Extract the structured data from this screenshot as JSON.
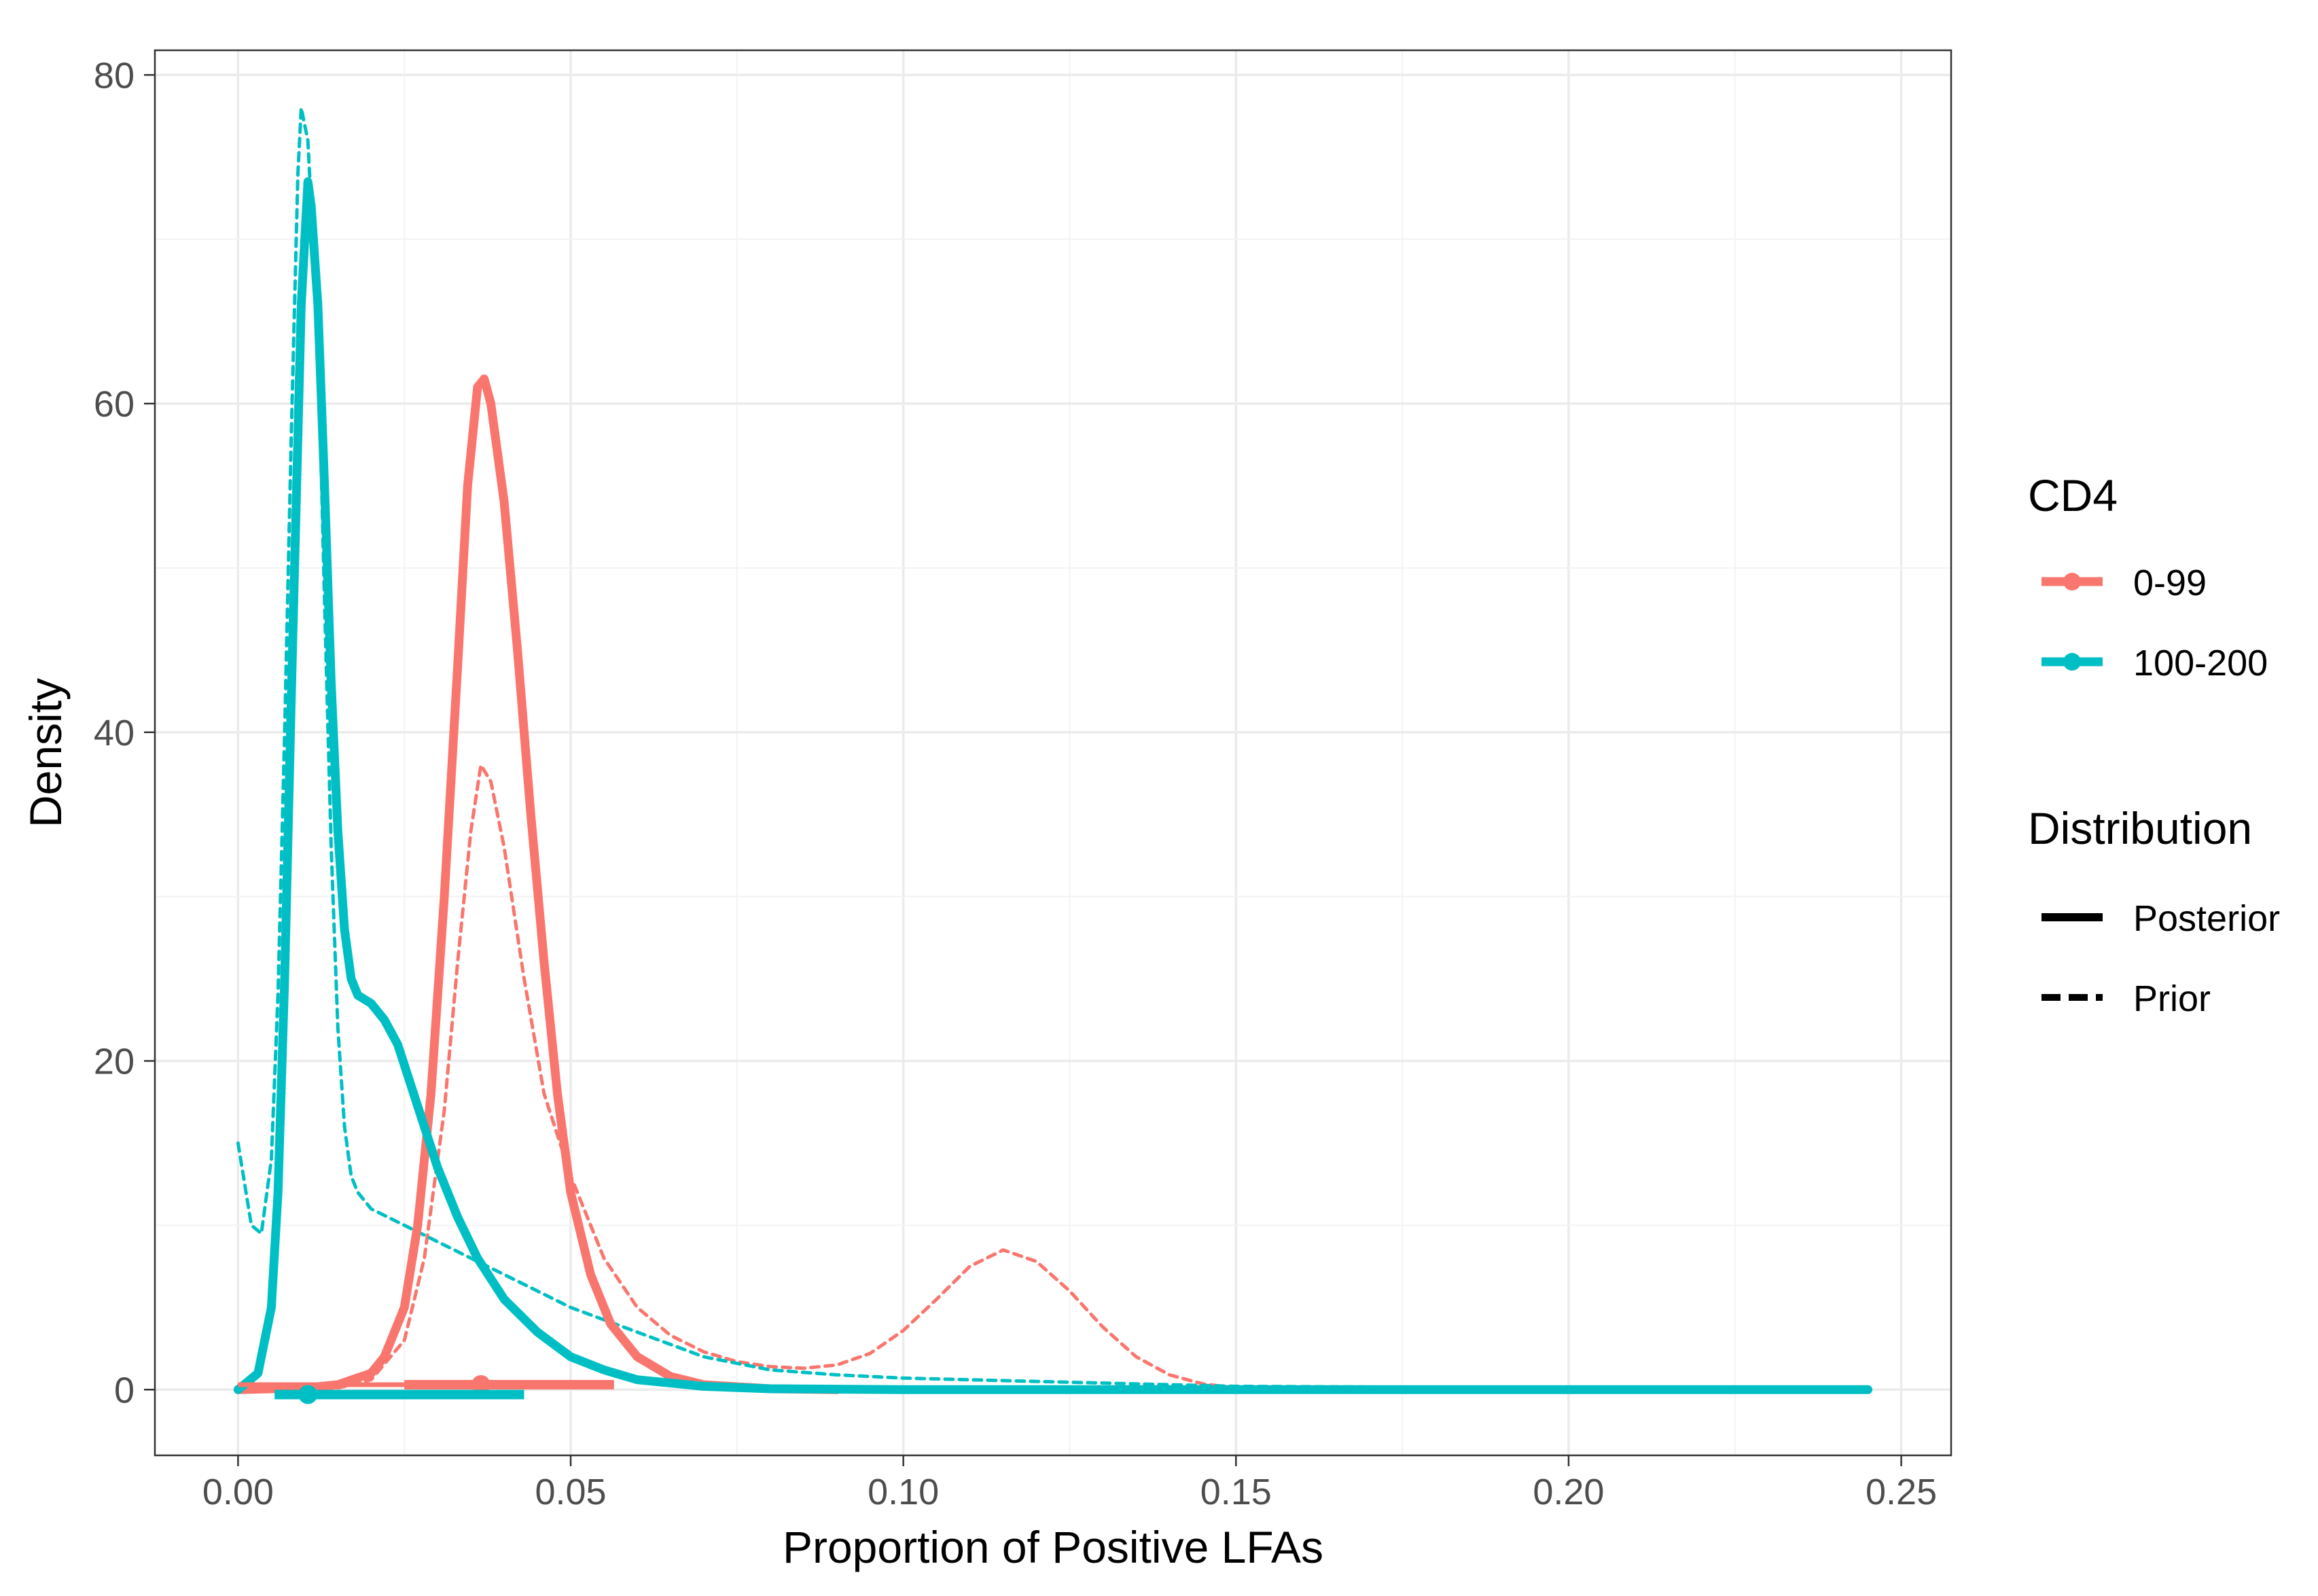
{
  "chart_data": {
    "type": "line",
    "title": "",
    "xlabel": "Proportion of Positive LFAs",
    "ylabel": "Density",
    "xlim": [
      -0.0125,
      0.2575
    ],
    "ylim": [
      -4,
      81.5
    ],
    "x_ticks": [
      0.0,
      0.05,
      0.1,
      0.15,
      0.2,
      0.25
    ],
    "x_tick_labels": [
      "0.00",
      "0.05",
      "0.10",
      "0.15",
      "0.20",
      "0.25"
    ],
    "y_ticks": [
      0,
      20,
      40,
      60,
      80
    ],
    "y_tick_labels": [
      "0",
      "20",
      "40",
      "60",
      "80"
    ],
    "grid": true,
    "colors": {
      "cd4_0_99": "#F8766D",
      "cd4_100_200": "#00BFC4"
    },
    "legend": {
      "placement": "right",
      "groups": [
        {
          "title": "CD4",
          "entries": [
            {
              "label": "0-99",
              "color": "#F8766D"
            },
            {
              "label": "100-200",
              "color": "#00BFC4"
            }
          ]
        },
        {
          "title": "Distribution",
          "entries": [
            {
              "label": "Posterior",
              "style": "solid"
            },
            {
              "label": "Prior",
              "style": "dashed"
            }
          ]
        }
      ]
    },
    "series": [
      {
        "group": "0-99",
        "distribution": "Prior",
        "color": "#F8766D",
        "style": "dashed",
        "points": [
          [
            0.0,
            0
          ],
          [
            0.015,
            0.1
          ],
          [
            0.02,
            0.6
          ],
          [
            0.025,
            3
          ],
          [
            0.028,
            8
          ],
          [
            0.031,
            17
          ],
          [
            0.033,
            26
          ],
          [
            0.035,
            34
          ],
          [
            0.0365,
            38
          ],
          [
            0.038,
            37
          ],
          [
            0.04,
            33
          ],
          [
            0.043,
            25
          ],
          [
            0.046,
            18
          ],
          [
            0.05,
            13
          ],
          [
            0.055,
            8
          ],
          [
            0.06,
            5
          ],
          [
            0.065,
            3.3
          ],
          [
            0.07,
            2.3
          ],
          [
            0.075,
            1.7
          ],
          [
            0.08,
            1.4
          ],
          [
            0.085,
            1.3
          ],
          [
            0.09,
            1.5
          ],
          [
            0.095,
            2.2
          ],
          [
            0.1,
            3.6
          ],
          [
            0.105,
            5.5
          ],
          [
            0.11,
            7.5
          ],
          [
            0.115,
            8.5
          ],
          [
            0.12,
            7.8
          ],
          [
            0.125,
            6
          ],
          [
            0.13,
            3.8
          ],
          [
            0.135,
            2
          ],
          [
            0.14,
            0.9
          ],
          [
            0.145,
            0.35
          ],
          [
            0.15,
            0.1
          ],
          [
            0.16,
            0
          ]
        ]
      },
      {
        "group": "100-200",
        "distribution": "Prior",
        "color": "#00BFC4",
        "style": "dashed",
        "points": [
          [
            0.0,
            15
          ],
          [
            0.002,
            10
          ],
          [
            0.0035,
            9.5
          ],
          [
            0.005,
            14
          ],
          [
            0.006,
            24
          ],
          [
            0.007,
            40
          ],
          [
            0.008,
            58
          ],
          [
            0.009,
            74
          ],
          [
            0.0095,
            78
          ],
          [
            0.0105,
            76
          ],
          [
            0.012,
            64
          ],
          [
            0.013,
            48
          ],
          [
            0.014,
            33
          ],
          [
            0.015,
            22
          ],
          [
            0.016,
            16
          ],
          [
            0.017,
            13
          ],
          [
            0.018,
            12
          ],
          [
            0.02,
            11
          ],
          [
            0.025,
            10
          ],
          [
            0.03,
            9
          ],
          [
            0.035,
            8
          ],
          [
            0.04,
            7
          ],
          [
            0.045,
            6
          ],
          [
            0.05,
            5
          ],
          [
            0.06,
            3.5
          ],
          [
            0.07,
            2
          ],
          [
            0.08,
            1.2
          ],
          [
            0.09,
            0.9
          ],
          [
            0.1,
            0.7
          ],
          [
            0.12,
            0.5
          ],
          [
            0.14,
            0.3
          ],
          [
            0.15,
            0.2
          ],
          [
            0.2,
            0.1
          ],
          [
            0.245,
            0
          ]
        ]
      },
      {
        "group": "0-99",
        "distribution": "Posterior",
        "color": "#F8766D",
        "style": "solid",
        "points": [
          [
            0.0,
            0
          ],
          [
            0.01,
            0.1
          ],
          [
            0.015,
            0.3
          ],
          [
            0.02,
            1
          ],
          [
            0.022,
            2
          ],
          [
            0.025,
            5
          ],
          [
            0.027,
            10
          ],
          [
            0.029,
            18
          ],
          [
            0.031,
            30
          ],
          [
            0.033,
            44
          ],
          [
            0.0345,
            55
          ],
          [
            0.036,
            61
          ],
          [
            0.037,
            61.5
          ],
          [
            0.038,
            60
          ],
          [
            0.04,
            54
          ],
          [
            0.042,
            45
          ],
          [
            0.044,
            35
          ],
          [
            0.046,
            26
          ],
          [
            0.048,
            18
          ],
          [
            0.05,
            12
          ],
          [
            0.053,
            7
          ],
          [
            0.056,
            4
          ],
          [
            0.06,
            2
          ],
          [
            0.065,
            0.8
          ],
          [
            0.07,
            0.3
          ],
          [
            0.08,
            0.05
          ],
          [
            0.09,
            0
          ]
        ]
      },
      {
        "group": "100-200",
        "distribution": "Posterior",
        "color": "#00BFC4",
        "style": "solid",
        "points": [
          [
            0.0,
            0
          ],
          [
            0.003,
            1
          ],
          [
            0.005,
            5
          ],
          [
            0.006,
            12
          ],
          [
            0.007,
            25
          ],
          [
            0.008,
            42
          ],
          [
            0.009,
            58
          ],
          [
            0.0095,
            66
          ],
          [
            0.0105,
            73.5
          ],
          [
            0.011,
            72
          ],
          [
            0.012,
            66
          ],
          [
            0.013,
            55
          ],
          [
            0.014,
            43
          ],
          [
            0.015,
            34
          ],
          [
            0.016,
            28
          ],
          [
            0.017,
            25
          ],
          [
            0.018,
            24
          ],
          [
            0.02,
            23.5
          ],
          [
            0.022,
            22.5
          ],
          [
            0.024,
            21
          ],
          [
            0.026,
            18.5
          ],
          [
            0.028,
            16
          ],
          [
            0.03,
            13.5
          ],
          [
            0.033,
            10.5
          ],
          [
            0.036,
            8
          ],
          [
            0.04,
            5.5
          ],
          [
            0.045,
            3.5
          ],
          [
            0.05,
            2
          ],
          [
            0.055,
            1.2
          ],
          [
            0.06,
            0.6
          ],
          [
            0.07,
            0.2
          ],
          [
            0.08,
            0.05
          ],
          [
            0.1,
            0
          ],
          [
            0.245,
            0
          ]
        ]
      }
    ],
    "intervals": [
      {
        "group": "0-99",
        "color": "#F8766D",
        "point": 0.0365,
        "inner": [
          0.025,
          0.0565
        ],
        "outer": [
          0.0,
          0.0565
        ],
        "offset": 0.3
      },
      {
        "group": "100-200",
        "color": "#00BFC4",
        "point": 0.0105,
        "inner": [
          0.0055,
          0.043
        ],
        "outer": [
          0.0055,
          0.043
        ],
        "offset": -0.3
      }
    ]
  }
}
